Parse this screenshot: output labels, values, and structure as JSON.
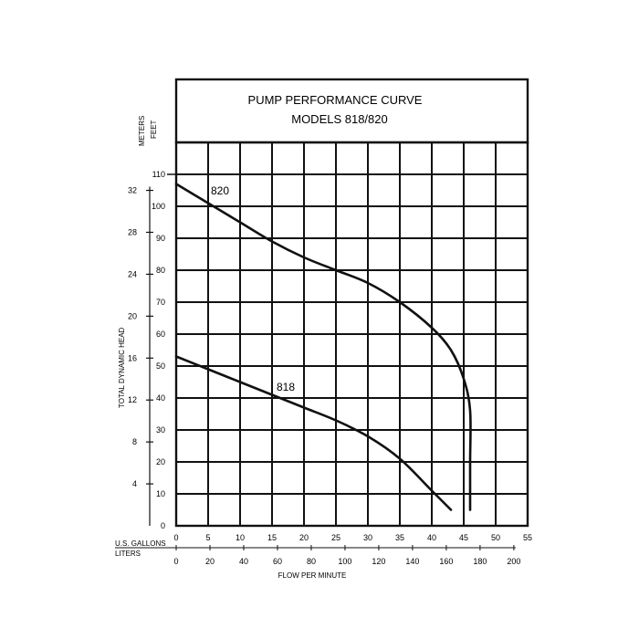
{
  "chart_data": {
    "type": "line",
    "title": "PUMP PERFORMANCE CURVE",
    "subtitle": "MODELS 818/820",
    "xlabel": "FLOW PER MINUTE",
    "ylabel": "TOTAL DYNAMIC HEAD",
    "x_axes": [
      {
        "label": "U.S. GALLONS",
        "ticks": [
          0,
          5,
          10,
          15,
          20,
          25,
          30,
          35,
          40,
          45,
          50,
          55
        ],
        "range": [
          0,
          55
        ]
      },
      {
        "label": "LITERS",
        "ticks": [
          0,
          20,
          40,
          60,
          80,
          100,
          120,
          140,
          160,
          180,
          200
        ]
      }
    ],
    "y_axes": [
      {
        "label": "FEET",
        "ticks": [
          0,
          10,
          20,
          30,
          40,
          50,
          60,
          70,
          80,
          90,
          100,
          110
        ],
        "range": [
          0,
          110
        ]
      },
      {
        "label": "METERS",
        "ticks": [
          4,
          8,
          12,
          16,
          20,
          24,
          28,
          32
        ]
      }
    ],
    "grid": true,
    "series": [
      {
        "name": "820",
        "x": [
          0,
          5,
          10,
          15,
          20,
          25,
          30,
          35,
          40,
          43,
          45,
          46,
          46,
          46
        ],
        "y": [
          107,
          101,
          95,
          89,
          84,
          80,
          76,
          70,
          62,
          55,
          46,
          36,
          20,
          5
        ]
      },
      {
        "name": "818",
        "x": [
          0,
          5,
          10,
          15,
          20,
          25,
          30,
          35,
          40,
          43
        ],
        "y": [
          53,
          49,
          45,
          41,
          37,
          33,
          28,
          21,
          11,
          5
        ]
      }
    ]
  }
}
